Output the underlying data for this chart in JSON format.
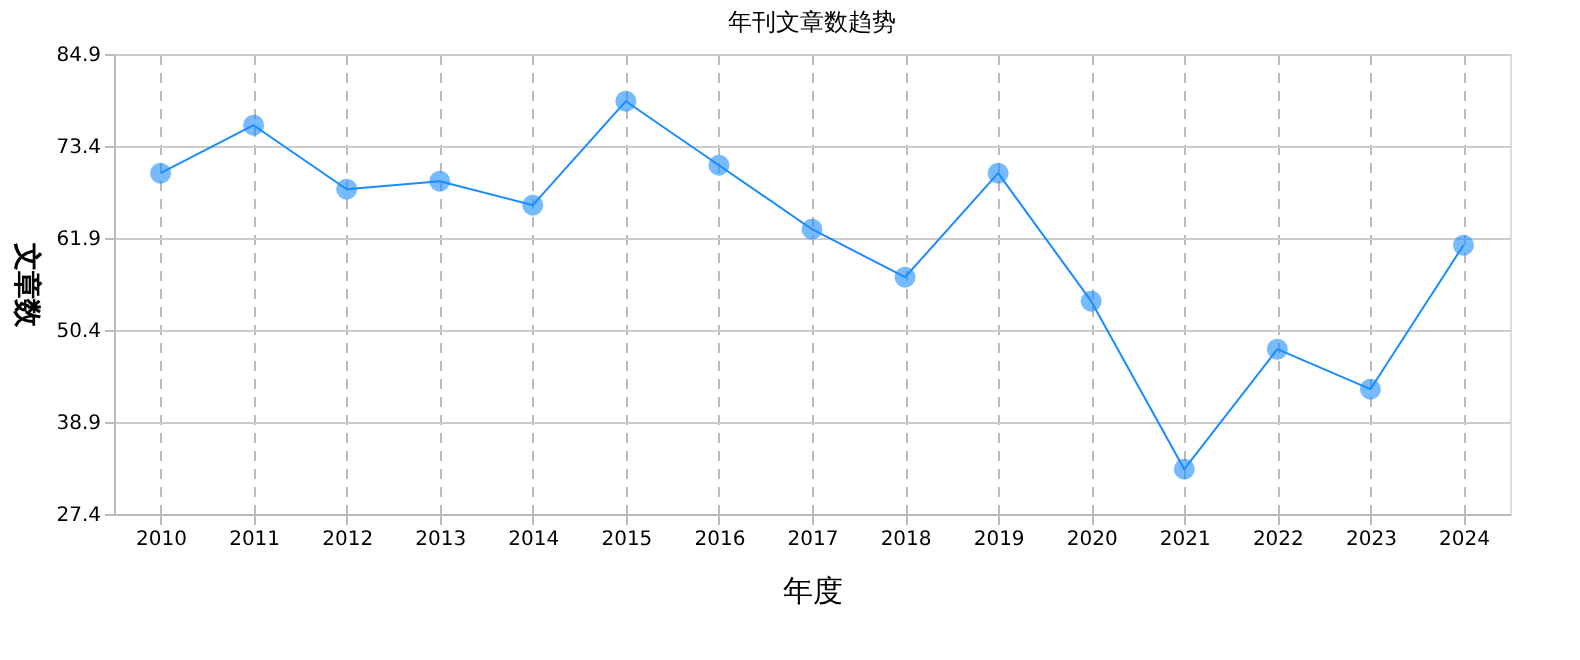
{
  "chart_data": {
    "type": "line",
    "title": "年刊文章数趋势",
    "xlabel": "年度",
    "ylabel": "文章数",
    "categories": [
      "2010",
      "2011",
      "2012",
      "2013",
      "2014",
      "2015",
      "2016",
      "2017",
      "2018",
      "2019",
      "2020",
      "2021",
      "2022",
      "2023",
      "2024"
    ],
    "series": [
      {
        "color": "#1a8cff",
        "values": [
          70,
          76,
          68,
          69,
          66,
          79,
          71,
          63,
          57,
          70,
          54,
          33,
          48,
          43,
          61
        ]
      }
    ],
    "ylim": [
      27.4,
      84.9
    ],
    "yticks": [
      27.4,
      38.9,
      50.4,
      61.9,
      73.4,
      84.9
    ],
    "grid": true,
    "marker": "circle",
    "line_style": "solid"
  }
}
